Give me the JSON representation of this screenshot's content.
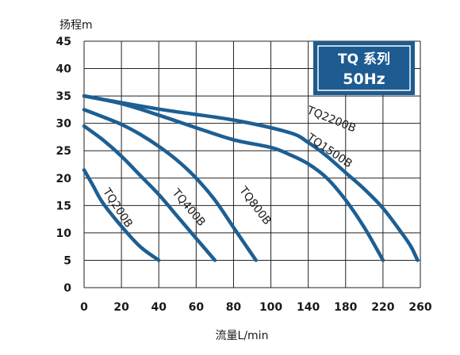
{
  "chart_data": {
    "type": "line",
    "ylabel": "扬程m",
    "xlabel": "流量L/min",
    "xlim": [
      0,
      260
    ],
    "ylim": [
      0,
      45
    ],
    "x_ticks": [
      "0",
      "20",
      "40",
      "60",
      "80",
      "100",
      "140",
      "180",
      "220",
      "260"
    ],
    "y_ticks": [
      "0",
      "5",
      "10",
      "15",
      "20",
      "25",
      "30",
      "35",
      "40",
      "45"
    ],
    "grid": true,
    "badge": {
      "line1": "TQ 系列",
      "line2": "50Hz",
      "position": "top-right"
    },
    "colors": {
      "curve": "#1d5f93",
      "badge_bg": "#1d5b90",
      "grid": "#222222"
    },
    "series": [
      {
        "name": "TQ200B",
        "points": [
          [
            0,
            21.5
          ],
          [
            5,
            18.5
          ],
          [
            10,
            15.5
          ],
          [
            20,
            11.2
          ],
          [
            30,
            7.5
          ],
          [
            40,
            5
          ]
        ]
      },
      {
        "name": "TQ400B",
        "points": [
          [
            0,
            29.5
          ],
          [
            10,
            27
          ],
          [
            20,
            24
          ],
          [
            30,
            20.5
          ],
          [
            40,
            17
          ],
          [
            50,
            13
          ],
          [
            60,
            9
          ],
          [
            70,
            5
          ]
        ]
      },
      {
        "name": "TQ800B",
        "points": [
          [
            0,
            32.5
          ],
          [
            10,
            31.2
          ],
          [
            20,
            29.8
          ],
          [
            30,
            28
          ],
          [
            40,
            25.8
          ],
          [
            50,
            23.2
          ],
          [
            60,
            20
          ],
          [
            70,
            16
          ],
          [
            80,
            11
          ],
          [
            85,
            8.5
          ],
          [
            92,
            5
          ]
        ]
      },
      {
        "name": "TQ1500B",
        "points": [
          [
            0,
            35
          ],
          [
            20,
            33.6
          ],
          [
            40,
            31.5
          ],
          [
            60,
            29.2
          ],
          [
            80,
            27
          ],
          [
            100,
            25.6
          ],
          [
            120,
            24.3
          ],
          [
            140,
            22.6
          ],
          [
            160,
            20
          ],
          [
            180,
            16
          ],
          [
            200,
            11
          ],
          [
            220,
            5
          ]
        ]
      },
      {
        "name": "TQ2200B",
        "points": [
          [
            0,
            35
          ],
          [
            40,
            32.6
          ],
          [
            80,
            30.6
          ],
          [
            120,
            28.3
          ],
          [
            140,
            26.5
          ],
          [
            160,
            24
          ],
          [
            180,
            21
          ],
          [
            200,
            18
          ],
          [
            220,
            14.5
          ],
          [
            240,
            10
          ],
          [
            250,
            7.5
          ],
          [
            257,
            5
          ]
        ]
      }
    ]
  }
}
